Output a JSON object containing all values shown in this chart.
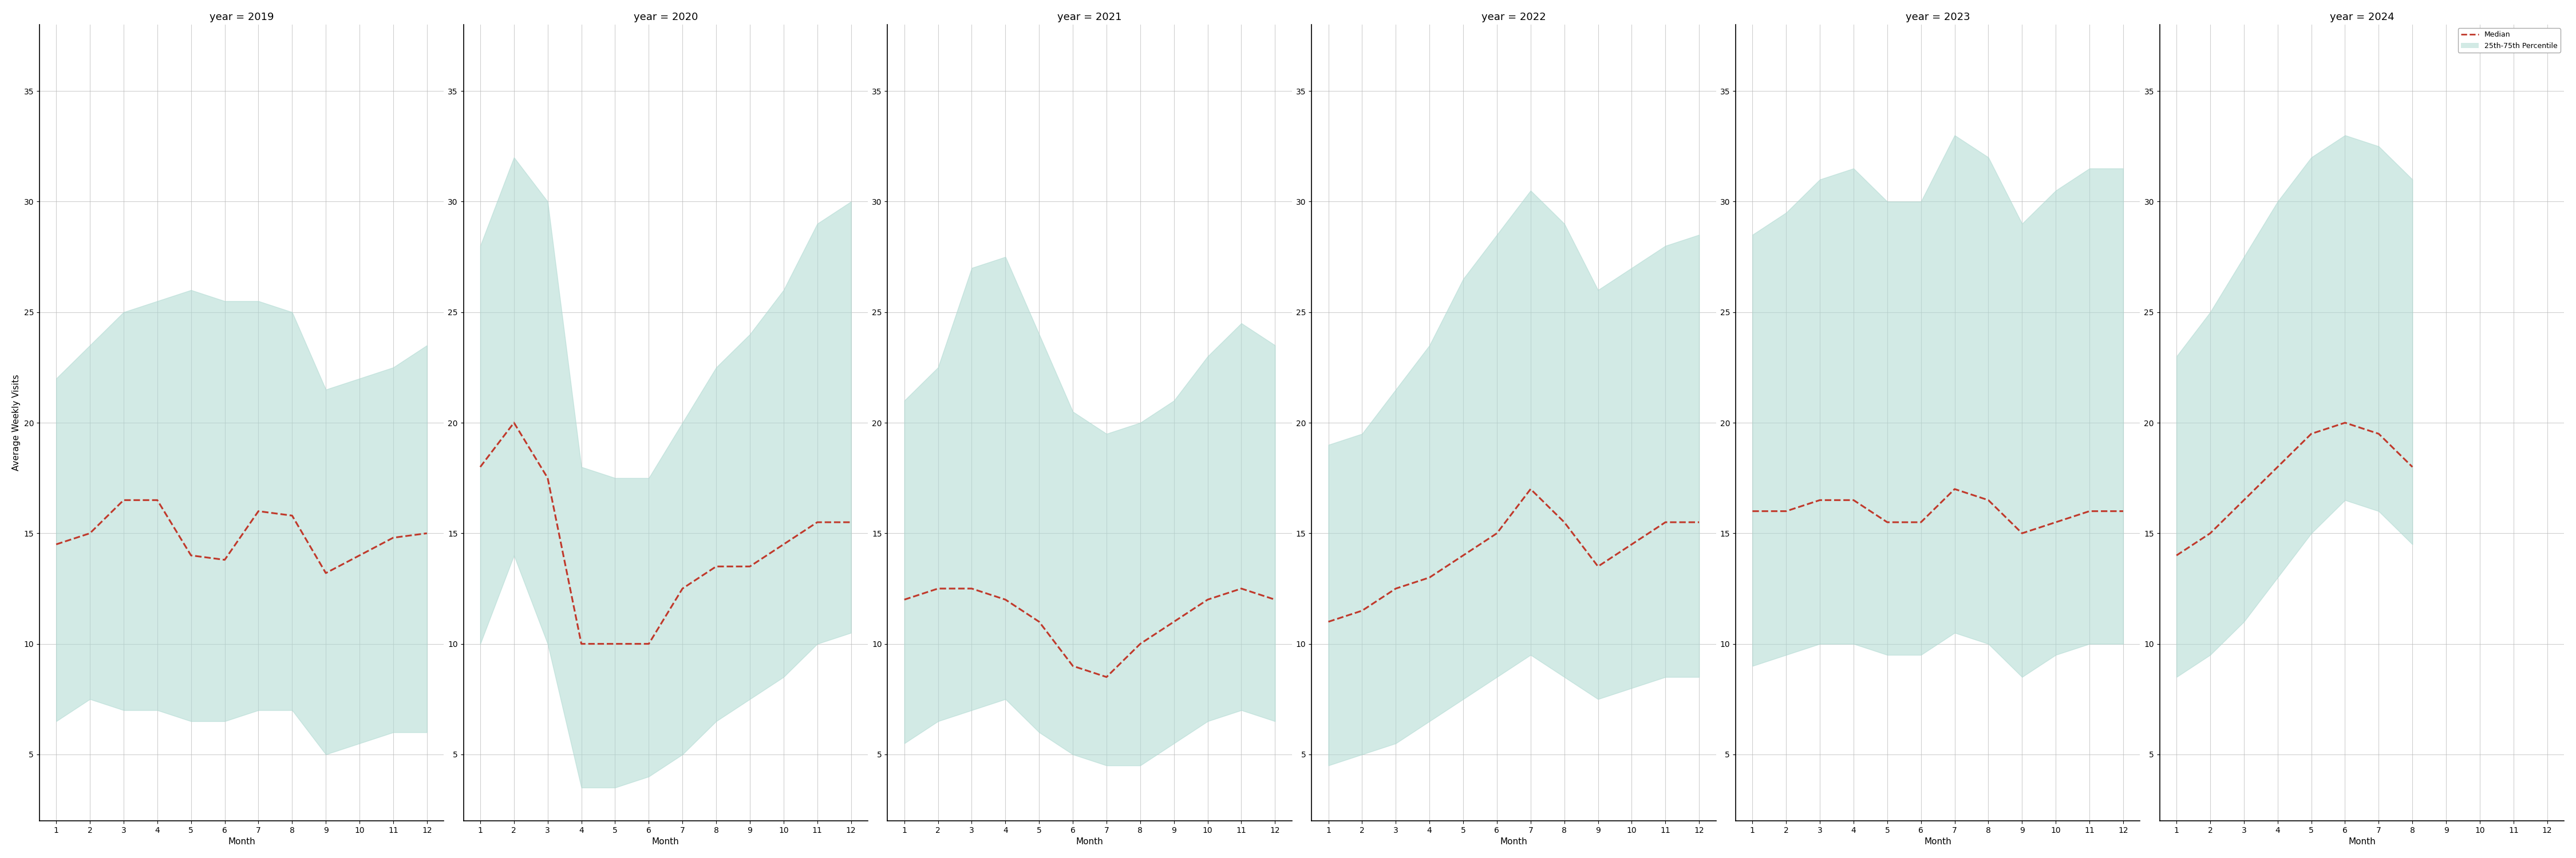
{
  "years": [
    2019,
    2020,
    2021,
    2022,
    2023,
    2024
  ],
  "months": [
    1,
    2,
    3,
    4,
    5,
    6,
    7,
    8,
    9,
    10,
    11,
    12
  ],
  "median": {
    "2019": [
      14.5,
      15.0,
      16.5,
      16.5,
      14.0,
      13.8,
      16.0,
      15.8,
      13.2,
      14.0,
      14.8,
      15.0
    ],
    "2020": [
      18.0,
      20.0,
      17.5,
      10.0,
      10.0,
      10.0,
      12.5,
      13.5,
      13.5,
      14.5,
      15.5,
      15.5
    ],
    "2021": [
      12.0,
      12.5,
      12.5,
      12.0,
      11.0,
      9.0,
      8.5,
      10.0,
      11.0,
      12.0,
      12.5,
      12.0
    ],
    "2022": [
      11.0,
      11.5,
      12.5,
      13.0,
      14.0,
      15.0,
      17.0,
      15.5,
      13.5,
      14.5,
      15.5,
      15.5
    ],
    "2023": [
      16.0,
      16.0,
      16.5,
      16.5,
      15.5,
      15.5,
      17.0,
      16.5,
      15.0,
      15.5,
      16.0,
      16.0
    ],
    "2024": [
      14.0,
      15.0,
      16.5,
      18.0,
      19.5,
      20.0,
      19.5,
      18.0,
      null,
      null,
      null,
      null
    ]
  },
  "p25": {
    "2019": [
      6.5,
      7.5,
      7.0,
      7.0,
      6.5,
      6.5,
      7.0,
      7.0,
      5.0,
      5.5,
      6.0,
      6.0
    ],
    "2020": [
      10.0,
      14.0,
      10.0,
      3.5,
      3.5,
      4.0,
      5.0,
      6.5,
      7.5,
      8.5,
      10.0,
      10.5
    ],
    "2021": [
      5.5,
      6.5,
      7.0,
      7.5,
      6.0,
      5.0,
      4.5,
      4.5,
      5.5,
      6.5,
      7.0,
      6.5
    ],
    "2022": [
      4.5,
      5.0,
      5.5,
      6.5,
      7.5,
      8.5,
      9.5,
      8.5,
      7.5,
      8.0,
      8.5,
      8.5
    ],
    "2023": [
      9.0,
      9.5,
      10.0,
      10.0,
      9.5,
      9.5,
      10.5,
      10.0,
      8.5,
      9.5,
      10.0,
      10.0
    ],
    "2024": [
      8.5,
      9.5,
      11.0,
      13.0,
      15.0,
      16.5,
      16.0,
      14.5,
      null,
      null,
      null,
      null
    ]
  },
  "p75": {
    "2019": [
      22.0,
      23.5,
      25.0,
      25.5,
      26.0,
      25.5,
      25.5,
      25.0,
      21.5,
      22.0,
      22.5,
      23.5
    ],
    "2020": [
      28.0,
      32.0,
      30.0,
      18.0,
      17.5,
      17.5,
      20.0,
      22.5,
      24.0,
      26.0,
      29.0,
      30.0
    ],
    "2021": [
      21.0,
      22.5,
      27.0,
      27.5,
      24.0,
      20.5,
      19.5,
      20.0,
      21.0,
      23.0,
      24.5,
      23.5
    ],
    "2022": [
      19.0,
      19.5,
      21.5,
      23.5,
      26.5,
      28.5,
      30.5,
      29.0,
      26.0,
      27.0,
      28.0,
      28.5
    ],
    "2023": [
      28.5,
      29.5,
      31.0,
      31.5,
      30.0,
      30.0,
      33.0,
      32.0,
      29.0,
      30.5,
      31.5,
      31.5
    ],
    "2024": [
      23.0,
      25.0,
      27.5,
      30.0,
      32.0,
      33.0,
      32.5,
      31.0,
      null,
      null,
      null,
      null
    ]
  },
  "fill_color": "#aed9d1",
  "fill_alpha": 0.55,
  "line_color": "#c0392b",
  "line_width": 2.2,
  "ylim": [
    2,
    38
  ],
  "yticks": [
    5,
    10,
    15,
    20,
    25,
    30,
    35
  ],
  "ylabel": "Average Weekly Visits",
  "xlabel": "Month",
  "grid_color": "#bbbbbb",
  "grid_alpha": 0.7,
  "background_color": "#ffffff",
  "legend_labels": [
    "Median",
    "25th-75th Percentile"
  ],
  "title_fontsize": 13,
  "axis_fontsize": 11,
  "tick_fontsize": 10
}
